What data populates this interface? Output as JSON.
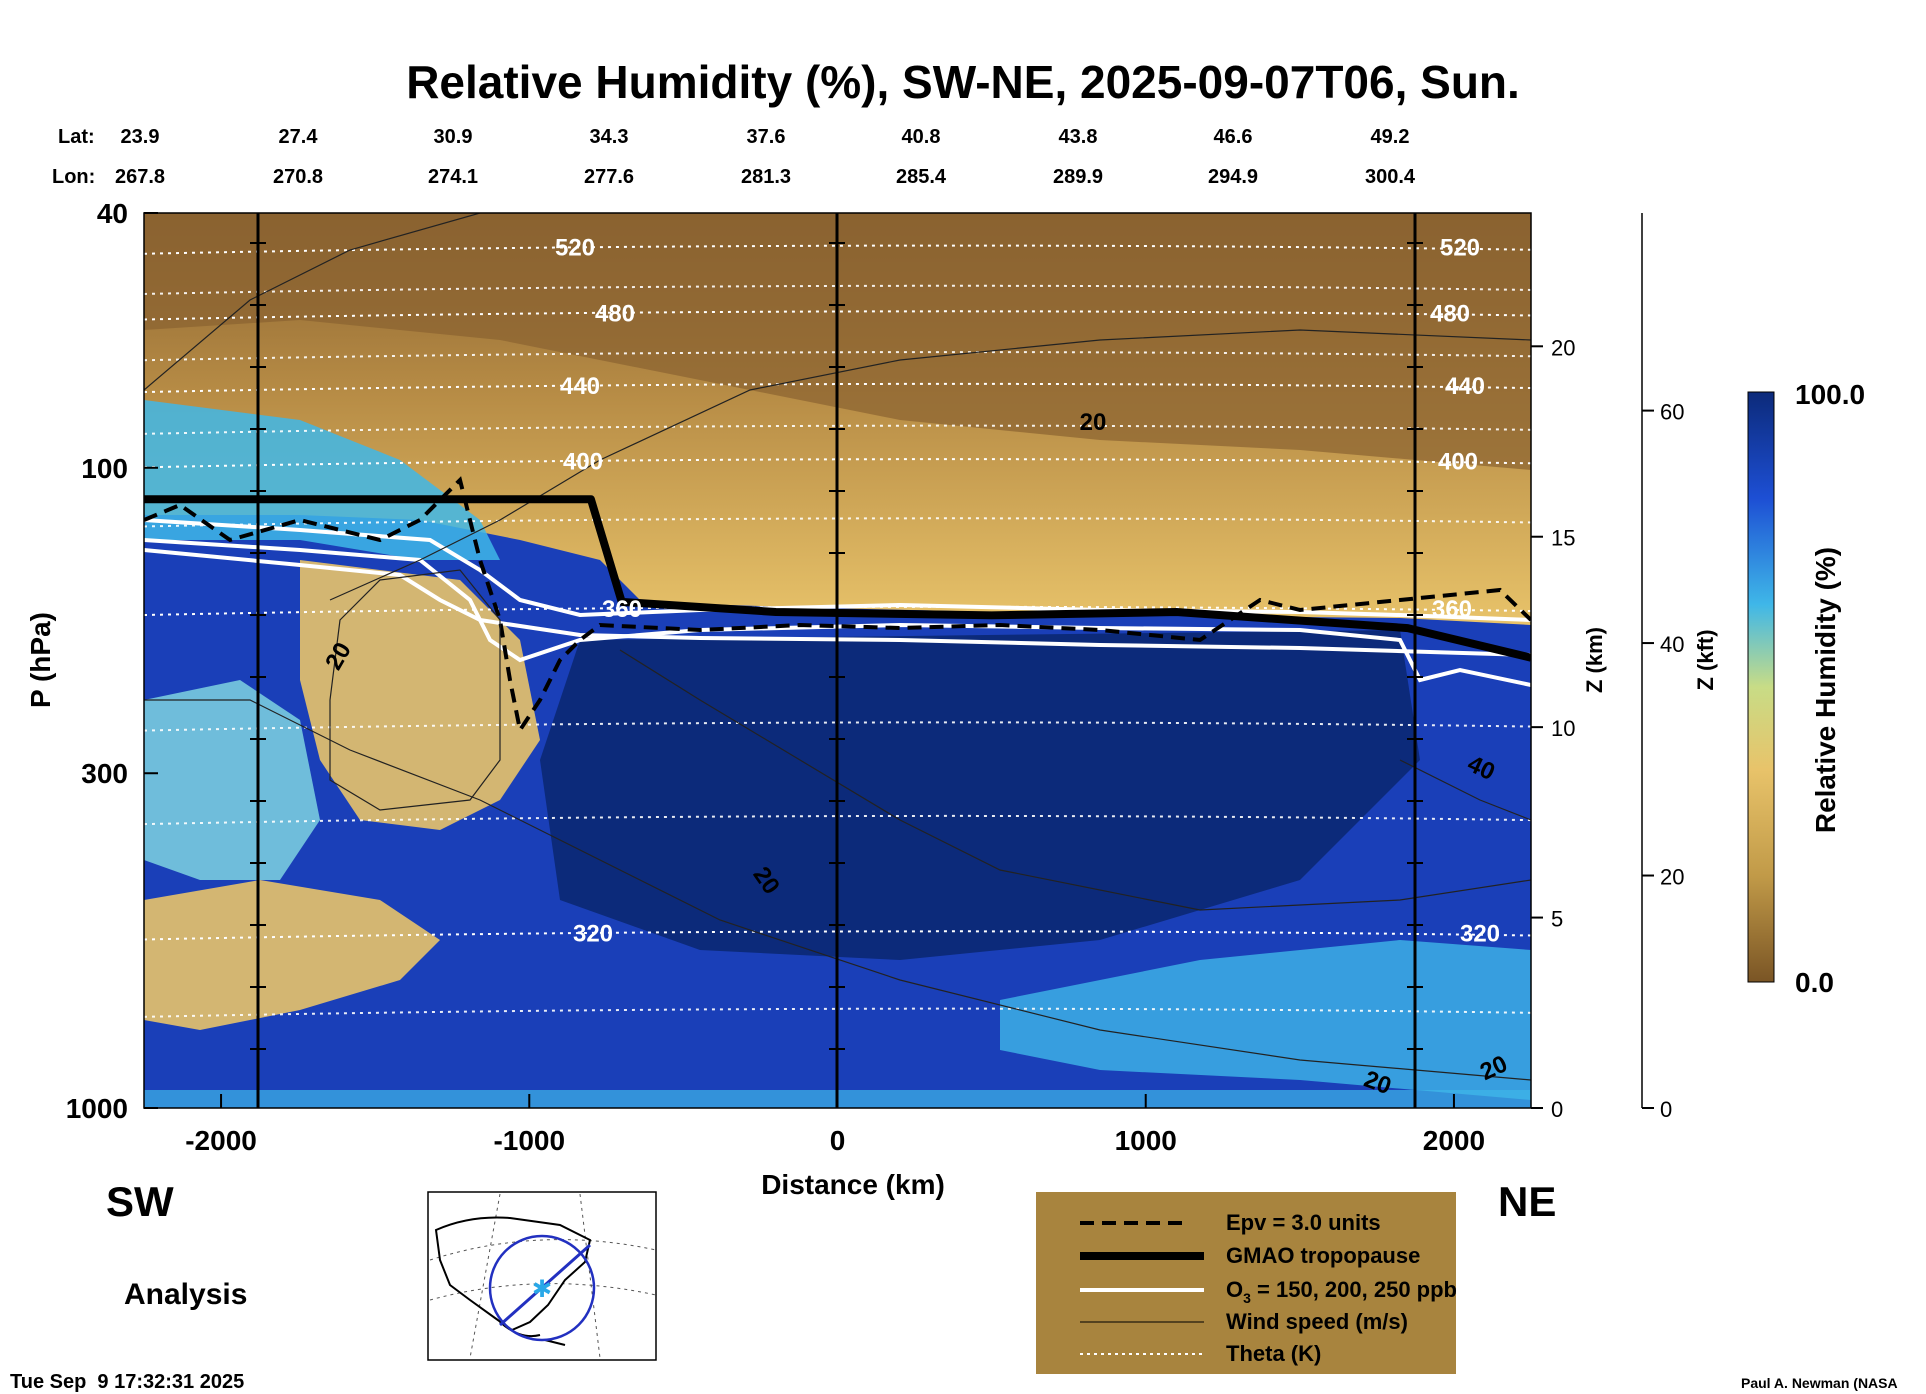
{
  "chart_data": {
    "type": "heatmap",
    "title": "Relative Humidity (%), SW-NE, 2025-09-07T06, Sun.",
    "xlabel": "Distance (km)",
    "ylabel": "P (hPa)",
    "xlim": [
      -2250,
      2250
    ],
    "ylim": [
      1000,
      40
    ],
    "yscale": "log",
    "x_ticks": [
      -2000,
      -1000,
      0,
      1000,
      2000
    ],
    "y_ticks": [
      40,
      100,
      300,
      1000
    ],
    "z_km_label": "Z (km)",
    "z_km_ticks": [
      0,
      5,
      10,
      15,
      20
    ],
    "z_kft_label": "Z (kft)",
    "z_kft_ticks": [
      0,
      20,
      40,
      60
    ],
    "lat_label": "Lat:",
    "lon_label": "Lon:",
    "lat_values": [
      "23.9",
      "27.4",
      "30.9",
      "34.3",
      "37.6",
      "40.8",
      "43.8",
      "46.6",
      "49.2"
    ],
    "lon_values": [
      "267.8",
      "270.8",
      "274.1",
      "277.6",
      "281.3",
      "285.4",
      "289.9",
      "294.9",
      "300.4"
    ],
    "grid": false,
    "colorbar": {
      "label": "Relative Humidity (%)",
      "min": 0.0,
      "max": 100.0,
      "min_label": "0.0",
      "max_label": "100.0"
    },
    "theta_contours": [
      {
        "label": "520",
        "pressure_hPa": 45
      },
      {
        "label": "480",
        "pressure_hPa": 57
      },
      {
        "label": "440",
        "pressure_hPa": 74
      },
      {
        "label": "400",
        "pressure_hPa": 97
      },
      {
        "label": "360",
        "pressure_hPa": 165
      },
      {
        "label": "320",
        "pressure_hPa": 530
      }
    ],
    "wind_labels": [
      "20",
      "20",
      "20",
      "20",
      "40",
      "20"
    ],
    "tropopause": [
      {
        "x": -2250,
        "p": 112
      },
      {
        "x": -800,
        "p": 112
      },
      {
        "x": -700,
        "p": 162
      },
      {
        "x": -200,
        "p": 168
      },
      {
        "x": 500,
        "p": 170
      },
      {
        "x": 1100,
        "p": 168
      },
      {
        "x": 1850,
        "p": 178
      },
      {
        "x": 2250,
        "p": 198
      }
    ],
    "side_labels": {
      "left": "SW",
      "right": "NE",
      "run": "Analysis"
    },
    "legend": {
      "placement": "bottom-right",
      "entries": [
        {
          "label": "Epv = 3.0 units",
          "style": "dashed"
        },
        {
          "label": "GMAO tropopause",
          "style": "thick"
        },
        {
          "label_main": "O",
          "label_sub": "3",
          "label_rest": " = 150, 200, 250 ppb",
          "style": "white"
        },
        {
          "label": "Wind speed (m/s)",
          "style": "thin"
        },
        {
          "label": "Theta (K)",
          "style": "dotted"
        }
      ]
    },
    "timestamp": "Tue Sep  9 17:32:31 2025",
    "credit": "Paul A. Newman (NASA"
  },
  "colors": {
    "humid_deep": "#0c2a7a",
    "humid_mid": "#1d4fd4",
    "humid_light": "#3fb7e8",
    "mid": "#c8dc86",
    "dry_light": "#e8c36a",
    "dry_mid": "#c19a48",
    "dry_deep": "#7a5525",
    "legend_bg": "#a8843e"
  }
}
